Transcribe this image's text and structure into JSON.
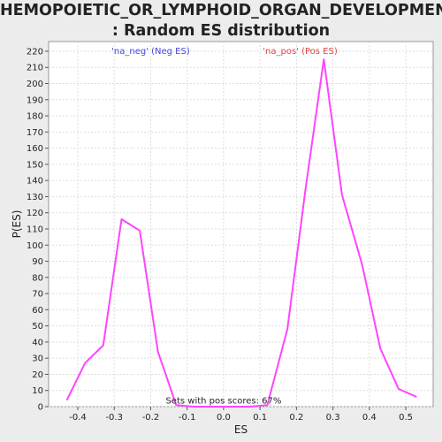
{
  "title_lines": [
    "HEMOPOIETIC_OR_LYMPHOID_ORGAN_DEVELOPMENT",
    ": Random ES distribution"
  ],
  "colors": {
    "line": "#ff44ff",
    "neg": "#4444dd",
    "pos": "#dd4444",
    "grid": "#dddddd"
  },
  "chart_data": {
    "type": "line",
    "title": "HEMOPOIETIC_OR_LYMPHOID_ORGAN_DEVELOPMENT : Random ES distribution",
    "xlabel": "ES",
    "ylabel": "P(ES)",
    "xlim": [
      -0.48,
      0.575
    ],
    "ylim": [
      0,
      226
    ],
    "xticks": [
      -0.4,
      -0.3,
      -0.2,
      -0.1,
      0.0,
      0.1,
      0.2,
      0.3,
      0.4,
      0.5
    ],
    "xtick_labels": [
      "-0.4",
      "-0.3",
      "-0.2",
      "-0.1",
      "0.0",
      "0.1",
      "0.2",
      "0.3",
      "0.4",
      "0.5"
    ],
    "yticks": [
      0,
      10,
      20,
      30,
      40,
      50,
      60,
      70,
      80,
      90,
      100,
      110,
      120,
      130,
      140,
      150,
      160,
      170,
      180,
      190,
      200,
      210,
      220
    ],
    "grid": true,
    "legend": [
      {
        "label": "'na_neg' (Neg ES)",
        "x": -0.2,
        "color": "#4444dd"
      },
      {
        "label": "'na_pos' (Pos ES)",
        "x": 0.21,
        "color": "#dd4444"
      }
    ],
    "annotation": {
      "text": "Sets with pos scores: 67%",
      "x": 0.0,
      "y": 2
    },
    "series": [
      {
        "x": [
          -0.43,
          -0.38,
          -0.33,
          -0.28,
          -0.23,
          -0.18,
          -0.13,
          -0.08,
          -0.03,
          0.02,
          0.07,
          0.12,
          0.175,
          0.225,
          0.275,
          0.325,
          0.38,
          0.43,
          0.48,
          0.53
        ],
        "y": [
          4,
          27,
          38,
          116,
          109,
          34,
          1,
          0,
          0,
          0,
          0,
          1,
          48,
          135,
          215,
          131,
          88,
          36,
          11,
          6
        ]
      }
    ]
  }
}
